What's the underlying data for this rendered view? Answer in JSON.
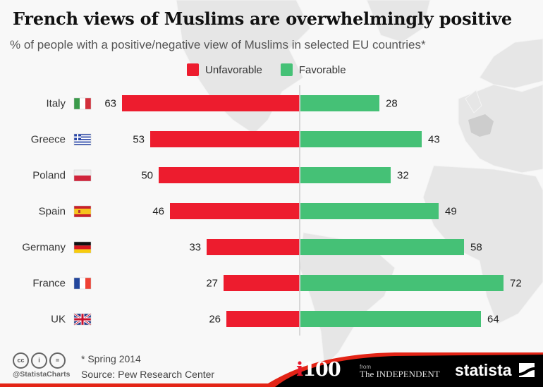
{
  "title": "French views of Muslims are overwhelmingly positive",
  "subtitle": "% of people with a positive/negative view of Muslims in selected EU countries*",
  "colors": {
    "unfavorable": "#ed1c2e",
    "favorable": "#45c176",
    "axis": "#cccccc"
  },
  "chart_data": {
    "type": "bar",
    "orientation": "horizontal-diverging",
    "title": "French views of Muslims are overwhelmingly positive",
    "subtitle": "% of people with a positive/negative view of Muslims in selected EU countries*",
    "categories": [
      "Italy",
      "Greece",
      "Poland",
      "Spain",
      "Germany",
      "France",
      "UK"
    ],
    "flags": [
      "italy-flag",
      "greece-flag",
      "poland-flag",
      "spain-flag",
      "germany-flag",
      "france-flag",
      "uk-flag"
    ],
    "series": [
      {
        "name": "Unfavorable",
        "color": "#ed1c2e",
        "direction": "left",
        "values": [
          63,
          53,
          50,
          46,
          33,
          27,
          26
        ]
      },
      {
        "name": "Favorable",
        "color": "#45c176",
        "direction": "right",
        "values": [
          28,
          43,
          32,
          49,
          58,
          72,
          64
        ]
      }
    ],
    "xlabel": "",
    "ylabel": "",
    "xlim": [
      -80,
      80
    ],
    "grid": false,
    "legend": "top-center"
  },
  "legend": {
    "unfavorable": "Unfavorable",
    "favorable": "Favorable"
  },
  "footer": {
    "note": "* Spring 2014",
    "source": "Source: Pew Research Center",
    "handle": "@StatistaCharts",
    "license_icons": [
      "cc",
      "by",
      "nd"
    ],
    "cc_labels": {
      "cc": "cc",
      "by": "i",
      "nd": "="
    },
    "brand_i100": {
      "i": "i",
      "rest": "100"
    },
    "from": "from",
    "independent": "The INDEPENDENT",
    "statista": "statista"
  }
}
